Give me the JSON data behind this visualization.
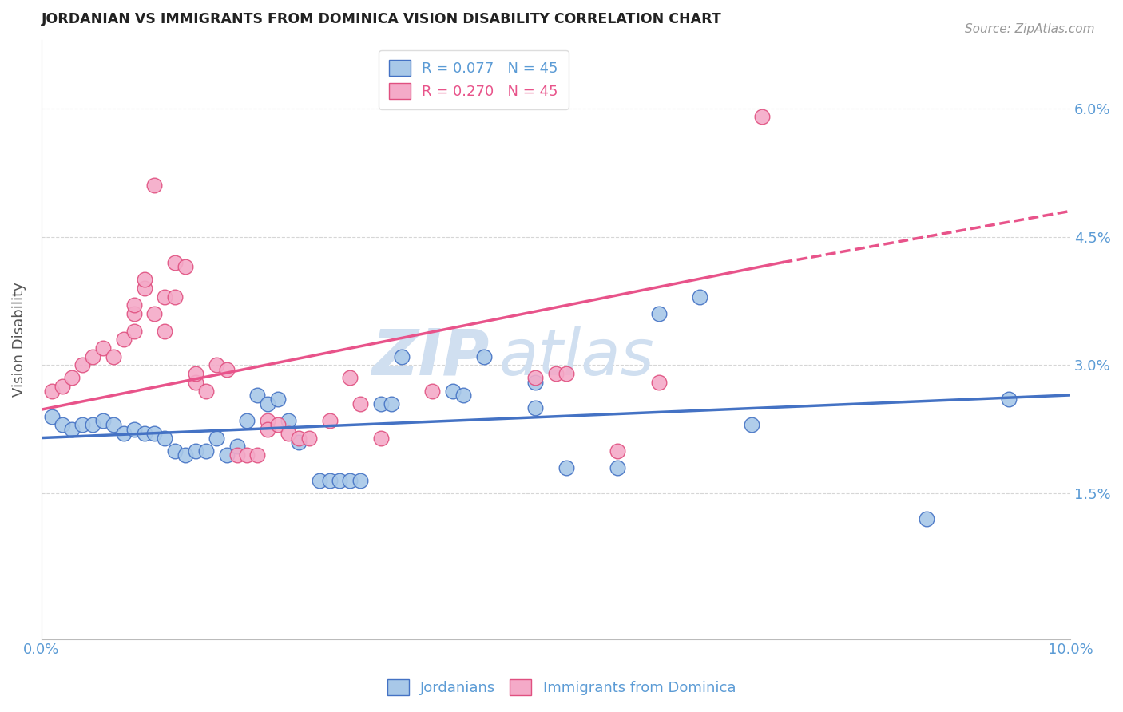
{
  "title": "JORDANIAN VS IMMIGRANTS FROM DOMINICA VISION DISABILITY CORRELATION CHART",
  "source": "Source: ZipAtlas.com",
  "ylabel": "Vision Disability",
  "xlim": [
    0.0,
    0.1
  ],
  "ylim": [
    -0.002,
    0.068
  ],
  "y_ticks": [
    0.015,
    0.03,
    0.045,
    0.06
  ],
  "y_tick_labels": [
    "1.5%",
    "3.0%",
    "4.5%",
    "6.0%"
  ],
  "x_ticks": [
    0.0,
    0.02,
    0.04,
    0.06,
    0.08,
    0.1
  ],
  "x_tick_labels": [
    "0.0%",
    "",
    "",
    "",
    "",
    "10.0%"
  ],
  "legend_labels": [
    "R = 0.077   N = 45",
    "R = 0.270   N = 45"
  ],
  "legend_text_blue": "#5b9bd5",
  "legend_text_pink": "#e8538a",
  "scatter_blue_fill": "#a8c8e8",
  "scatter_pink_fill": "#f4aac8",
  "scatter_blue_edge": "#4472c4",
  "scatter_pink_edge": "#e05080",
  "line_blue_color": "#4472c4",
  "line_pink_color": "#e8538a",
  "watermark_color": "#d0dff0",
  "background_color": "#ffffff",
  "grid_color": "#cccccc",
  "title_color": "#222222",
  "axis_label_color": "#555555",
  "tick_label_color": "#5b9bd5",
  "blue_scatter": [
    [
      0.001,
      0.024
    ],
    [
      0.002,
      0.023
    ],
    [
      0.003,
      0.0225
    ],
    [
      0.004,
      0.023
    ],
    [
      0.005,
      0.023
    ],
    [
      0.006,
      0.0235
    ],
    [
      0.007,
      0.023
    ],
    [
      0.008,
      0.022
    ],
    [
      0.009,
      0.0225
    ],
    [
      0.01,
      0.022
    ],
    [
      0.011,
      0.022
    ],
    [
      0.012,
      0.0215
    ],
    [
      0.013,
      0.02
    ],
    [
      0.014,
      0.0195
    ],
    [
      0.015,
      0.02
    ],
    [
      0.016,
      0.02
    ],
    [
      0.017,
      0.0215
    ],
    [
      0.018,
      0.0195
    ],
    [
      0.019,
      0.0205
    ],
    [
      0.02,
      0.0235
    ],
    [
      0.021,
      0.0265
    ],
    [
      0.022,
      0.0255
    ],
    [
      0.023,
      0.026
    ],
    [
      0.024,
      0.0235
    ],
    [
      0.025,
      0.021
    ],
    [
      0.027,
      0.0165
    ],
    [
      0.028,
      0.0165
    ],
    [
      0.029,
      0.0165
    ],
    [
      0.03,
      0.0165
    ],
    [
      0.031,
      0.0165
    ],
    [
      0.033,
      0.0255
    ],
    [
      0.034,
      0.0255
    ],
    [
      0.035,
      0.031
    ],
    [
      0.04,
      0.027
    ],
    [
      0.041,
      0.0265
    ],
    [
      0.043,
      0.031
    ],
    [
      0.048,
      0.028
    ],
    [
      0.048,
      0.025
    ],
    [
      0.051,
      0.018
    ],
    [
      0.056,
      0.018
    ],
    [
      0.06,
      0.036
    ],
    [
      0.064,
      0.038
    ],
    [
      0.069,
      0.023
    ],
    [
      0.086,
      0.012
    ],
    [
      0.094,
      0.026
    ]
  ],
  "pink_scatter": [
    [
      0.001,
      0.027
    ],
    [
      0.002,
      0.0275
    ],
    [
      0.003,
      0.0285
    ],
    [
      0.004,
      0.03
    ],
    [
      0.005,
      0.031
    ],
    [
      0.006,
      0.032
    ],
    [
      0.007,
      0.031
    ],
    [
      0.008,
      0.033
    ],
    [
      0.009,
      0.034
    ],
    [
      0.009,
      0.036
    ],
    [
      0.009,
      0.037
    ],
    [
      0.01,
      0.039
    ],
    [
      0.01,
      0.04
    ],
    [
      0.011,
      0.036
    ],
    [
      0.012,
      0.038
    ],
    [
      0.012,
      0.034
    ],
    [
      0.013,
      0.038
    ],
    [
      0.013,
      0.042
    ],
    [
      0.014,
      0.0415
    ],
    [
      0.015,
      0.028
    ],
    [
      0.015,
      0.029
    ],
    [
      0.016,
      0.027
    ],
    [
      0.017,
      0.03
    ],
    [
      0.018,
      0.0295
    ],
    [
      0.019,
      0.0195
    ],
    [
      0.02,
      0.0195
    ],
    [
      0.021,
      0.0195
    ],
    [
      0.022,
      0.0235
    ],
    [
      0.022,
      0.0225
    ],
    [
      0.023,
      0.023
    ],
    [
      0.024,
      0.022
    ],
    [
      0.025,
      0.0215
    ],
    [
      0.026,
      0.0215
    ],
    [
      0.028,
      0.0235
    ],
    [
      0.03,
      0.0285
    ],
    [
      0.031,
      0.0255
    ],
    [
      0.033,
      0.0215
    ],
    [
      0.038,
      0.027
    ],
    [
      0.048,
      0.0285
    ],
    [
      0.05,
      0.029
    ],
    [
      0.051,
      0.029
    ],
    [
      0.056,
      0.02
    ],
    [
      0.06,
      0.028
    ],
    [
      0.07,
      0.059
    ],
    [
      0.011,
      0.051
    ]
  ],
  "blue_line": {
    "x0": 0.0,
    "x1": 0.1,
    "y0": 0.0215,
    "y1": 0.0265
  },
  "pink_line_solid_x0": 0.0,
  "pink_line_solid_x1": 0.072,
  "pink_line_solid_y0": 0.0248,
  "pink_line_solid_y1": 0.042,
  "pink_line_dash_x0": 0.072,
  "pink_line_dash_x1": 0.1,
  "pink_line_dash_y0": 0.042,
  "pink_line_dash_y1": 0.048
}
